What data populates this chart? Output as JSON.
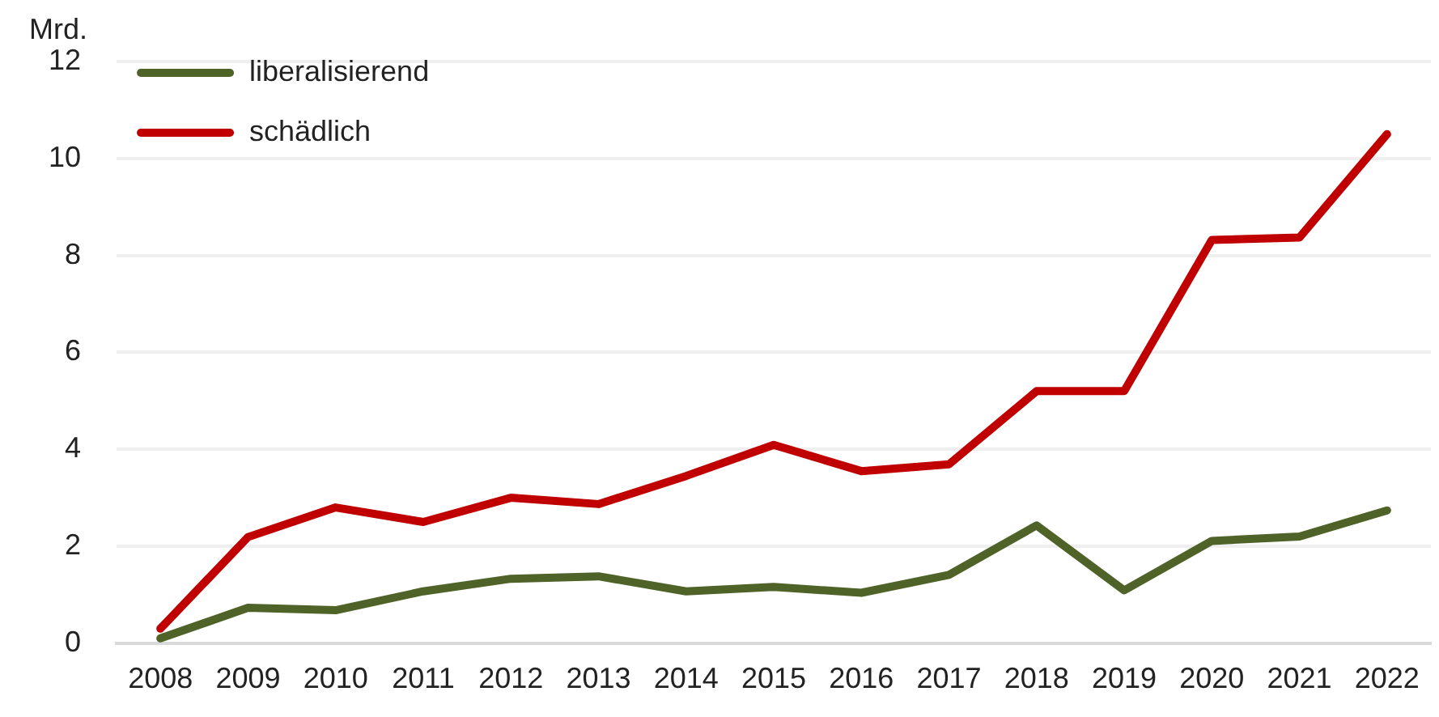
{
  "chart_data": {
    "type": "line",
    "ylabel": "Mrd.",
    "categories": [
      "2008",
      "2009",
      "2010",
      "2011",
      "2012",
      "2013",
      "2014",
      "2015",
      "2016",
      "2017",
      "2018",
      "2019",
      "2020",
      "2021",
      "2022"
    ],
    "series": [
      {
        "name": "liberalisierend",
        "color": "#4f6228",
        "values": [
          0.1,
          0.73,
          0.68,
          1.07,
          1.33,
          1.38,
          1.07,
          1.16,
          1.04,
          1.41,
          2.43,
          1.09,
          2.11,
          2.2,
          2.74
        ]
      },
      {
        "name": "schädlich",
        "color": "#c00000",
        "values": [
          0.3,
          2.19,
          2.8,
          2.5,
          3.0,
          2.87,
          3.45,
          4.09,
          3.55,
          3.69,
          5.2,
          5.2,
          8.32,
          8.37,
          10.5
        ]
      }
    ],
    "ylim": [
      0,
      12
    ],
    "yticks": [
      0,
      2,
      4,
      6,
      8,
      10,
      12
    ],
    "grid": "y",
    "legend": "top left",
    "marker": "none",
    "line_style": "solid"
  }
}
